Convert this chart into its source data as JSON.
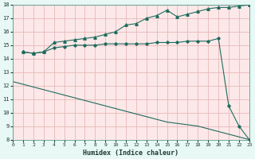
{
  "line1_x": [
    1,
    2,
    3,
    4,
    5,
    6,
    7,
    8,
    9,
    10,
    11,
    12,
    13,
    14,
    15,
    16,
    17,
    18,
    19,
    20,
    21,
    22,
    23
  ],
  "line1_y": [
    14.5,
    14.4,
    14.5,
    15.2,
    15.3,
    15.4,
    15.5,
    15.6,
    15.8,
    16.0,
    16.5,
    16.6,
    17.0,
    17.2,
    17.6,
    17.1,
    17.3,
    17.5,
    17.7,
    17.8,
    17.8,
    17.9,
    18.0
  ],
  "line2_x": [
    1,
    2,
    3,
    4,
    5,
    6,
    7,
    8,
    9,
    10,
    11,
    12,
    13,
    14,
    15,
    16,
    17,
    18,
    19,
    20,
    21,
    22,
    23
  ],
  "line2_y": [
    14.5,
    14.4,
    14.5,
    14.8,
    14.9,
    15.0,
    15.0,
    15.0,
    15.1,
    15.1,
    15.1,
    15.1,
    15.1,
    15.2,
    15.2,
    15.2,
    15.3,
    15.3,
    15.3,
    15.5,
    10.5,
    9.0,
    8.0
  ],
  "line3_x": [
    0,
    1,
    2,
    3,
    4,
    5,
    6,
    7,
    8,
    9,
    10,
    11,
    12,
    13,
    14,
    15,
    16,
    17,
    18,
    19,
    20,
    21,
    22,
    23
  ],
  "line3_y": [
    12.3,
    12.1,
    11.9,
    11.7,
    11.5,
    11.3,
    11.1,
    10.9,
    10.7,
    10.5,
    10.3,
    10.1,
    9.9,
    9.7,
    9.5,
    9.3,
    9.2,
    9.1,
    9.0,
    8.8,
    8.6,
    8.4,
    8.2,
    8.0
  ],
  "line_color": "#1e6b5e",
  "bg_color": "#e8f8f5",
  "plot_bg_color": "#fce8e8",
  "grid_color": "#e8b8b8",
  "xlabel": "Humidex (Indice chaleur)",
  "xlim": [
    0,
    23
  ],
  "ylim": [
    8,
    18
  ],
  "yticks": [
    8,
    9,
    10,
    11,
    12,
    13,
    14,
    15,
    16,
    17,
    18
  ],
  "xticks": [
    0,
    1,
    2,
    3,
    4,
    5,
    6,
    7,
    8,
    9,
    10,
    11,
    12,
    13,
    14,
    15,
    16,
    17,
    18,
    19,
    20,
    21,
    22,
    23
  ]
}
